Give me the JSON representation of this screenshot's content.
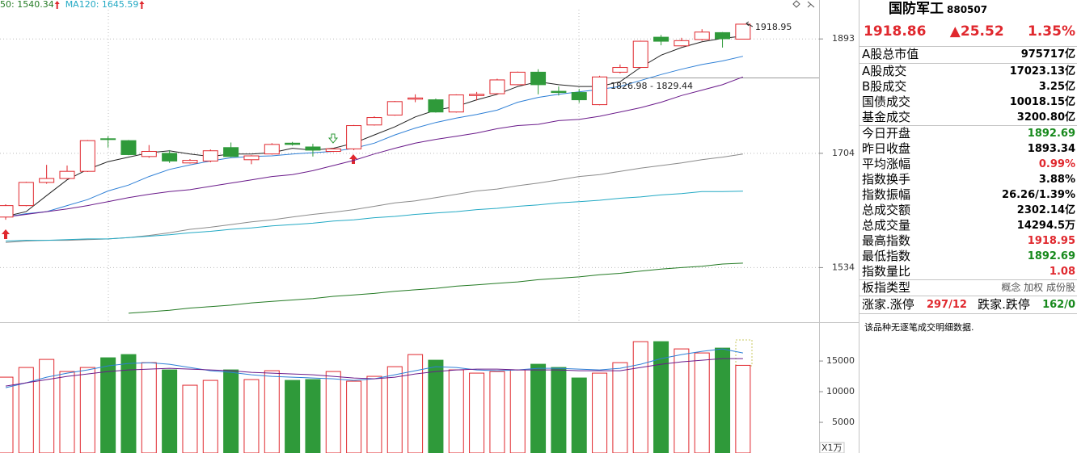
{
  "chart_data": [
    {
      "type": "candlestick",
      "legend": [
        {
          "text": "50: 1540.34",
          "color": "#237a23"
        },
        {
          "text": "MA120: 1645.59",
          "color": "#22a9c4"
        }
      ],
      "open": [
        1607,
        1624,
        1659,
        1665,
        1676,
        1727,
        1724,
        1699,
        1704,
        1689,
        1692,
        1713,
        1694,
        1703,
        1720,
        1714,
        1707,
        1711,
        1749,
        1765,
        1791,
        1790,
        1770,
        1797,
        1800,
        1815,
        1836,
        1804,
        1802,
        1782,
        1836,
        1844,
        1896,
        1881,
        1892,
        1904,
        1892.69
      ],
      "high": [
        1626,
        1660,
        1686,
        1685,
        1725,
        1731,
        1725,
        1717,
        1709,
        1695,
        1710,
        1721,
        1701,
        1720,
        1722,
        1719,
        1712,
        1749,
        1763,
        1788,
        1799,
        1792,
        1799,
        1803,
        1825,
        1837,
        1841,
        1812,
        1808,
        1830,
        1849,
        1890,
        1900,
        1895,
        1910,
        1905,
        1918.95
      ],
      "low": [
        1603,
        1623,
        1657,
        1664,
        1675,
        1713,
        1701,
        1697,
        1689,
        1688,
        1690,
        1698,
        1687,
        1702,
        1716,
        1699,
        1706,
        1709,
        1748,
        1764,
        1786,
        1769,
        1769,
        1789,
        1799,
        1814,
        1799,
        1797,
        1785,
        1781,
        1834,
        1843,
        1882,
        1880,
        1890,
        1878,
        1892.69
      ],
      "close": [
        1624,
        1659,
        1665,
        1676,
        1724,
        1726,
        1702,
        1707,
        1692,
        1693,
        1708,
        1699,
        1700,
        1718,
        1718,
        1709,
        1711,
        1748,
        1761,
        1787,
        1793,
        1770,
        1798,
        1799,
        1823,
        1836,
        1815,
        1802,
        1790,
        1828,
        1844,
        1889,
        1889,
        1890,
        1905,
        1893.34,
        1918.86
      ],
      "up_color": "#e0282e",
      "down_color": "#2f9a3a",
      "log_scale": true,
      "ylim": [
        1460,
        1962
      ],
      "yticks": [
        1534,
        1704,
        1893
      ],
      "grid": true,
      "overlays": [
        {
          "color": "#222222",
          "values": [
            1608,
            1615,
            1639,
            1663,
            1679,
            1691,
            1698,
            1705,
            1708,
            1703,
            1699,
            1703,
            1703,
            1705,
            1712,
            1709,
            1712,
            1720,
            1733,
            1746,
            1762,
            1773,
            1779,
            1790,
            1799,
            1812,
            1820,
            1815,
            1812,
            1812,
            1820,
            1844,
            1865,
            1878,
            1888,
            1894,
            1898
          ]
        },
        {
          "color": "#2d7fd6",
          "values": [
            1607,
            1612,
            1615,
            1624,
            1633,
            1646,
            1655,
            1668,
            1679,
            1686,
            1692,
            1697,
            1699,
            1700,
            1703,
            1705,
            1707,
            1712,
            1720,
            1733,
            1744,
            1753,
            1760,
            1766,
            1773,
            1786,
            1794,
            1799,
            1803,
            1807,
            1812,
            1822,
            1832,
            1841,
            1849,
            1855,
            1863
          ]
        },
        {
          "color": "#6a1a8a",
          "values": [
            1607,
            1611,
            1615,
            1619,
            1624,
            1630,
            1636,
            1641,
            1645,
            1648,
            1653,
            1658,
            1663,
            1668,
            1671,
            1677,
            1685,
            1693,
            1703,
            1712,
            1720,
            1726,
            1731,
            1736,
            1743,
            1748,
            1750,
            1756,
            1758,
            1763,
            1770,
            1777,
            1786,
            1797,
            1806,
            1815,
            1828
          ]
        },
        {
          "color": "#8a8a8a",
          "values": [
            1570,
            1572,
            1573,
            1573,
            1574,
            1575,
            1577,
            1580,
            1584,
            1589,
            1592,
            1596,
            1600,
            1603,
            1607,
            1611,
            1614,
            1618,
            1623,
            1628,
            1631,
            1636,
            1641,
            1646,
            1649,
            1654,
            1658,
            1663,
            1668,
            1671,
            1676,
            1681,
            1685,
            1689,
            1694,
            1698,
            1703
          ]
        },
        {
          "color": "#22a9c4",
          "values": [
            1572,
            1573,
            1573,
            1574,
            1575,
            1575,
            1577,
            1579,
            1581,
            1584,
            1586,
            1589,
            1591,
            1594,
            1596,
            1598,
            1601,
            1603,
            1606,
            1608,
            1611,
            1613,
            1615,
            1618,
            1620,
            1623,
            1625,
            1628,
            1630,
            1632,
            1635,
            1637,
            1640,
            1642,
            1645,
            1645,
            1645.59
          ]
        },
        {
          "color": "#237a23",
          "values": [
            null,
            null,
            null,
            null,
            null,
            null,
            1471,
            1473,
            1475,
            1478,
            1480,
            1482,
            1485,
            1487,
            1489,
            1491,
            1494,
            1496,
            1498,
            1501,
            1503,
            1505,
            1508,
            1510,
            1512,
            1514,
            1517,
            1519,
            1521,
            1524,
            1526,
            1529,
            1532,
            1534,
            1536,
            1539,
            1540.34
          ]
        }
      ],
      "annotations": [
        "1918.95",
        "1826.98 - 1829.44"
      ]
    },
    {
      "type": "bar",
      "values": [
        12368,
        13947,
        15263,
        13289,
        13947,
        15526,
        16053,
        14737,
        13553,
        11053,
        11842,
        13553,
        11974,
        13421,
        11842,
        11974,
        13289,
        11711,
        12500,
        14079,
        16053,
        15132,
        13553,
        13026,
        13289,
        13553,
        14474,
        13947,
        12237,
        13026,
        14737,
        18158,
        18158,
        16974,
        16316,
        17105,
        14294.5
      ],
      "ylim": [
        0,
        21200
      ],
      "yticks": [
        5000,
        10000,
        15000
      ],
      "grid": false,
      "unit_label": "X1万",
      "overlays": [
        {
          "color": "#2d7fd6",
          "values": [
            10658,
            11447,
            12368,
            13026,
            13553,
            14211,
            14605,
            14737,
            14474,
            13947,
            13421,
            13158,
            12763,
            12500,
            12368,
            12237,
            12105,
            11842,
            12105,
            12763,
            13421,
            14079,
            13947,
            13553,
            13421,
            13553,
            13816,
            13816,
            13684,
            13553,
            13816,
            14474,
            15395,
            16053,
            16579,
            16974,
            16316
          ]
        },
        {
          "color": "#6a1a8a",
          "values": [
            10921,
            11447,
            11974,
            12500,
            12895,
            13289,
            13553,
            13684,
            13816,
            13684,
            13553,
            13421,
            13158,
            13026,
            12895,
            12763,
            12500,
            12237,
            12105,
            12368,
            12895,
            13289,
            13553,
            13684,
            13684,
            13553,
            13553,
            13553,
            13421,
            13421,
            13421,
            13947,
            14474,
            14868,
            15132,
            15395,
            15395
          ]
        }
      ]
    }
  ],
  "panel": {
    "title": "国防军工",
    "code": "880507",
    "price": "1918.86",
    "change": "▲25.52",
    "change_pct": "1.35%",
    "quote_color": "#e0282e",
    "sections": [
      [
        {
          "label": "A股总市值",
          "value": "975717亿",
          "color": "#000000"
        }
      ],
      [
        {
          "label": "A股成交",
          "value": "17023.13亿",
          "color": "#000000"
        },
        {
          "label": "B股成交",
          "value": "3.25亿",
          "color": "#000000"
        },
        {
          "label": "国债成交",
          "value": "10018.15亿",
          "color": "#000000"
        },
        {
          "label": "基金成交",
          "value": "3200.80亿",
          "color": "#000000"
        }
      ],
      [
        {
          "label": "今日开盘",
          "value": "1892.69",
          "color": "#17891c"
        },
        {
          "label": "昨日收盘",
          "value": "1893.34",
          "color": "#000000"
        },
        {
          "label": "平均涨幅",
          "value": "0.99%",
          "color": "#e0282e"
        },
        {
          "label": "指数换手",
          "value": "3.88%",
          "color": "#000000"
        },
        {
          "label": "指数振幅",
          "value": "26.26/1.39%",
          "color": "#000000"
        },
        {
          "label": "总成交额",
          "value": "2302.14亿",
          "color": "#000000"
        },
        {
          "label": "总成交量",
          "value": "14294.5万",
          "color": "#000000"
        },
        {
          "label": "最高指数",
          "value": "1918.95",
          "color": "#e0282e"
        },
        {
          "label": "最低指数",
          "value": "1892.69",
          "color": "#17891c"
        },
        {
          "label": "指数量比",
          "value": "1.08",
          "color": "#e0282e"
        }
      ],
      [
        {
          "label": "板指类型",
          "value": "概念 加权 成份股",
          "color": "#555555"
        }
      ]
    ],
    "breadth": [
      {
        "label": "涨家.涨停",
        "value": "297/12",
        "color": "#e0282e"
      },
      {
        "label": "跌家.跌停",
        "value": "162/0",
        "color": "#17891c"
      }
    ],
    "note": "该品种无逐笔成交明细数据."
  }
}
